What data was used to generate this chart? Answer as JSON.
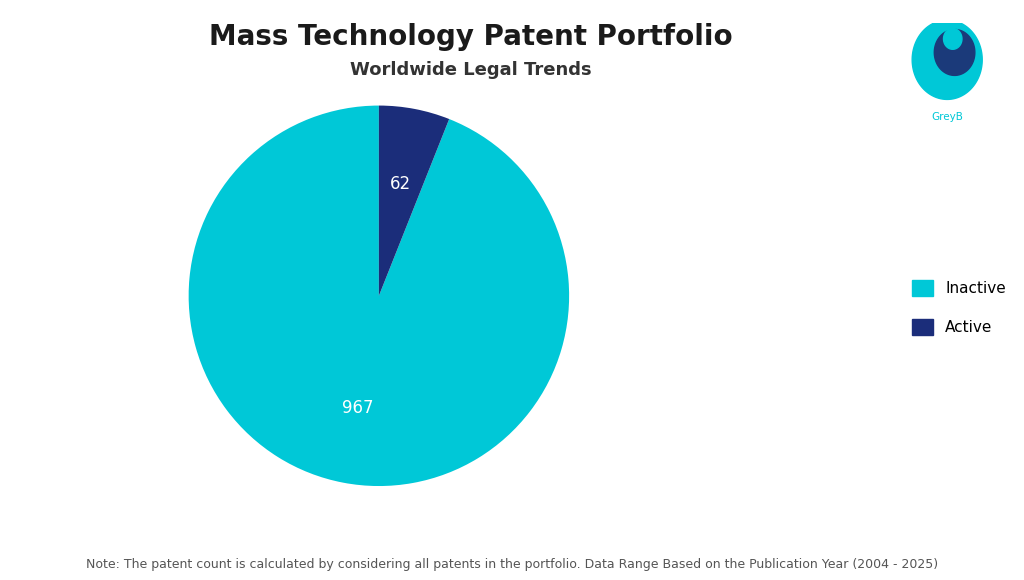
{
  "title": "Mass Technology Patent Portfolio",
  "subtitle": "Worldwide Legal Trends",
  "labels": [
    "Inactive",
    "Active"
  ],
  "values": [
    967,
    62
  ],
  "colors": [
    "#00C8D7",
    "#1B2D7A"
  ],
  "label_colors": [
    "white",
    "white"
  ],
  "note": "Note: The patent count is calculated by considering all patents in the portfolio. Data Range Based on the Publication Year (2004 - 2025)",
  "legend_labels": [
    "Inactive",
    "Active"
  ],
  "background_color": "#ffffff",
  "title_fontsize": 20,
  "subtitle_fontsize": 13,
  "note_fontsize": 9,
  "autopct_fontsize": 12
}
